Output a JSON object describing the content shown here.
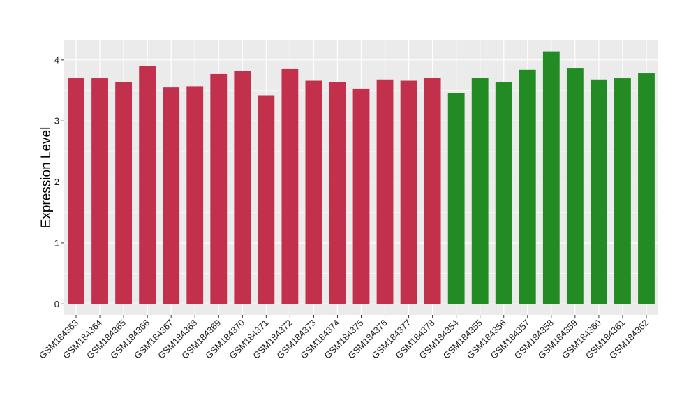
{
  "chart_data": {
    "type": "bar",
    "title": "",
    "xlabel": "",
    "ylabel": "Expression Level",
    "ylim": [
      -0.18,
      4.33
    ],
    "yticks": [
      0,
      1,
      2,
      3,
      4
    ],
    "ytick_labels": [
      "0",
      "1",
      "2",
      "3",
      "4"
    ],
    "grid": true,
    "legend": "none",
    "panel_background": "#ebebeb",
    "gridline_color": "#ffffff",
    "categories": [
      "GSM184363",
      "GSM184364",
      "GSM184365",
      "GSM184366",
      "GSM184367",
      "GSM184368",
      "GSM184369",
      "GSM184370",
      "GSM184371",
      "GSM184372",
      "GSM184373",
      "GSM184374",
      "GSM184375",
      "GSM184376",
      "GSM184377",
      "GSM184378",
      "GSM184354",
      "GSM184355",
      "GSM184356",
      "GSM184357",
      "GSM184358",
      "GSM184359",
      "GSM184360",
      "GSM184361",
      "GSM184362"
    ],
    "values": [
      3.7,
      3.7,
      3.64,
      3.9,
      3.55,
      3.57,
      3.77,
      3.82,
      3.42,
      3.85,
      3.66,
      3.64,
      3.53,
      3.68,
      3.66,
      3.71,
      3.46,
      3.71,
      3.64,
      3.84,
      4.14,
      3.86,
      3.68,
      3.7,
      3.78
    ],
    "colors": [
      "#c3304b",
      "#c3304b",
      "#c3304b",
      "#c3304b",
      "#c3304b",
      "#c3304b",
      "#c3304b",
      "#c3304b",
      "#c3304b",
      "#c3304b",
      "#c3304b",
      "#c3304b",
      "#c3304b",
      "#c3304b",
      "#c3304b",
      "#c3304b",
      "#238b23",
      "#238b23",
      "#238b23",
      "#238b23",
      "#238b23",
      "#238b23",
      "#238b23",
      "#238b23",
      "#238b23"
    ]
  }
}
